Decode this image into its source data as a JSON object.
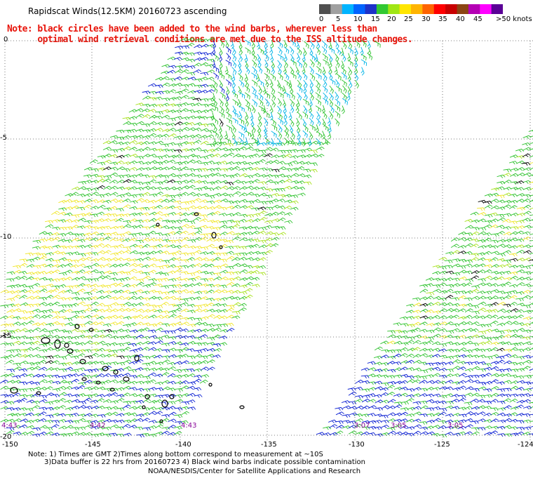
{
  "header": {
    "title": "Rapidscat Winds(12.5KM) 20160723 ascending",
    "note_line1": "Note: black circles have been added to the wind barbs, wherever less than",
    "note_line2": "      optimal wind retrieval conditions are met due to the ISS altitude changes."
  },
  "legend": {
    "unit": ">50 knots",
    "labels": [
      "0",
      "5",
      "10",
      "15",
      "20",
      "25",
      "30",
      "35",
      "40",
      "45"
    ],
    "colors": [
      "#505050",
      "#a0a0a0",
      "#00b4ff",
      "#0064ff",
      "#1e32c8",
      "#32c832",
      "#a0e614",
      "#ffe600",
      "#ffb400",
      "#ff6400",
      "#ff0000",
      "#c80000",
      "#8b4513",
      "#b400b4",
      "#ff00ff",
      "#5a0096"
    ]
  },
  "axes": {
    "lon_labels": [
      "-150",
      "-145",
      "-140",
      "-135",
      "-130",
      "-125",
      "-124"
    ],
    "lat_labels": [
      "0",
      "-5",
      "-10",
      "-15",
      "-20"
    ]
  },
  "swath_times": [
    "4:43",
    "4:42",
    "4:43",
    "3:07",
    "3:05",
    "3:05"
  ],
  "footer": {
    "line1": "Note: 1) Times are GMT 2)Times along bottom correspond to measurement at ~10S",
    "line2": "3)Data buffer is 22 hrs from 20160723 4) Black wind barbs indicate possible contamination",
    "line3": "NOAA/NESDIS/Center for Satellite Applications and Research"
  },
  "barb_colors": {
    "calm": "#00b4e6",
    "light": "#0a1ed2",
    "moderate": "#2ec22e",
    "fresh": "#a8e21e",
    "strong": "#f0e628",
    "flagged": "#000000"
  }
}
